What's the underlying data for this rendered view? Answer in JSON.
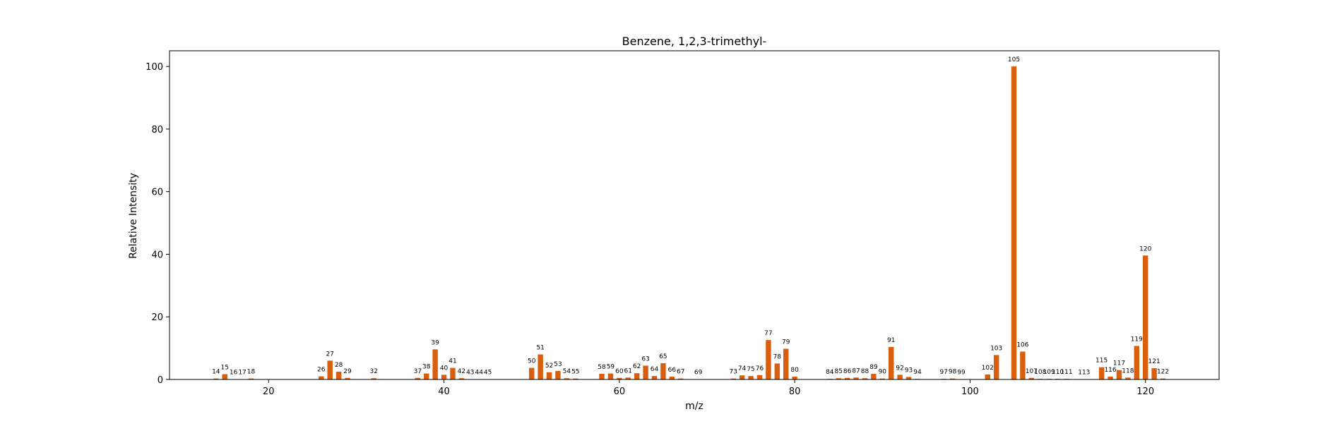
{
  "chart_data": {
    "type": "bar",
    "title": "Benzene, 1,2,3-trimethyl-",
    "xlabel": "m/z",
    "ylabel": "Relative Intensity",
    "xlim": [
      8.7,
      128.4
    ],
    "ylim": [
      0,
      105
    ],
    "xticks": [
      20,
      40,
      60,
      80,
      100,
      120
    ],
    "yticks": [
      0,
      20,
      40,
      60,
      80,
      100
    ],
    "bar_color": "#d95f0e",
    "grid": false,
    "x": [
      14,
      15,
      16,
      17,
      18,
      26,
      27,
      28,
      29,
      32,
      37,
      38,
      39,
      40,
      41,
      42,
      43,
      44,
      45,
      50,
      51,
      52,
      53,
      54,
      55,
      58,
      59,
      60,
      61,
      62,
      63,
      64,
      65,
      66,
      67,
      69,
      73,
      74,
      75,
      76,
      77,
      78,
      79,
      80,
      84,
      85,
      86,
      87,
      88,
      89,
      90,
      91,
      92,
      93,
      94,
      97,
      98,
      99,
      102,
      103,
      105,
      106,
      107,
      108,
      109,
      110,
      111,
      113,
      115,
      116,
      117,
      118,
      119,
      120,
      121,
      122
    ],
    "values": [
      0.3,
      1.7,
      0.1,
      0.1,
      0.3,
      1.0,
      6.0,
      2.5,
      0.5,
      0.4,
      0.5,
      1.9,
      9.6,
      1.5,
      3.7,
      0.4,
      0.1,
      0.1,
      0.1,
      3.7,
      8.0,
      2.3,
      2.7,
      0.4,
      0.3,
      1.8,
      1.9,
      0.5,
      0.6,
      2.0,
      4.4,
      1.1,
      5.2,
      0.9,
      0.3,
      0.1,
      0.3,
      1.3,
      1.1,
      1.4,
      12.6,
      5.1,
      9.8,
      0.9,
      0.2,
      0.4,
      0.5,
      0.6,
      0.4,
      1.8,
      0.3,
      10.4,
      1.5,
      0.8,
      0.2,
      0.2,
      0.3,
      0.1,
      1.6,
      7.8,
      100,
      8.9,
      0.5,
      0.2,
      0.2,
      0.2,
      0.2,
      0.1,
      3.9,
      0.9,
      3.0,
      0.6,
      10.7,
      39.6,
      3.6,
      0.3
    ],
    "labels": [
      "14",
      "15",
      "16",
      "17",
      "18",
      "26",
      "27",
      "28",
      "29",
      "32",
      "37",
      "38",
      "39",
      "40",
      "41",
      "42",
      "43",
      "44",
      "45",
      "50",
      "51",
      "52",
      "53",
      "54",
      "55",
      "58",
      "59",
      "60",
      "61",
      "62",
      "63",
      "64",
      "65",
      "66",
      "67",
      "69",
      "73",
      "74",
      "75",
      "76",
      "77",
      "78",
      "79",
      "80",
      "84",
      "85",
      "86",
      "87",
      "88",
      "89",
      "90",
      "91",
      "92",
      "93",
      "94",
      "97",
      "98",
      "99",
      "102",
      "103",
      "105",
      "106",
      "107",
      "108",
      "109",
      "110",
      "111",
      "113",
      "115",
      "116",
      "117",
      "118",
      "119",
      "120",
      "121",
      "122"
    ]
  }
}
